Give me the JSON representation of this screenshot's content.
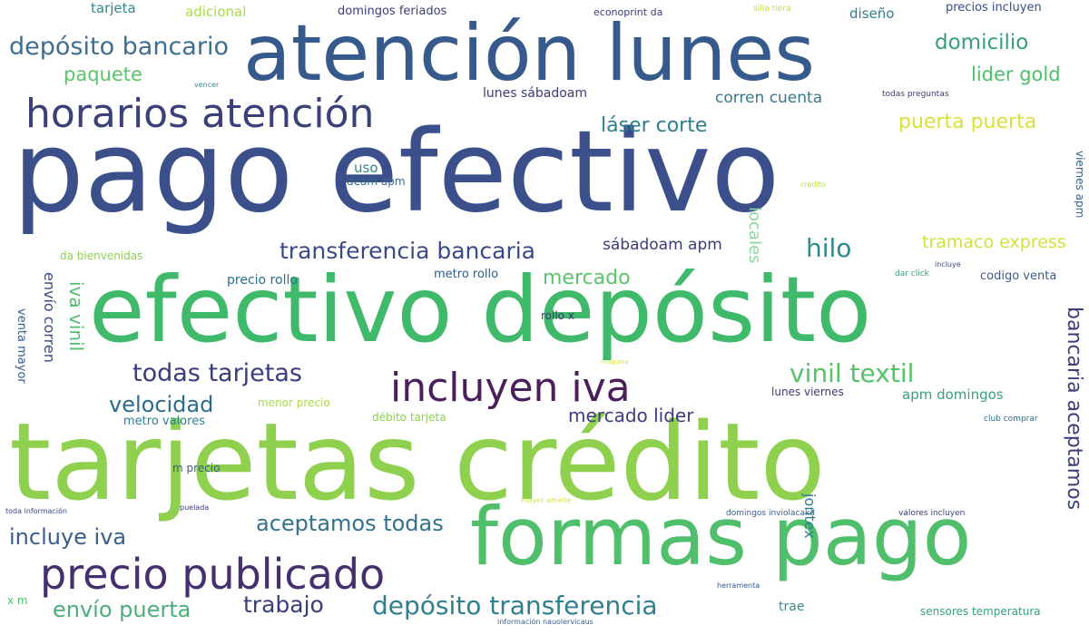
{
  "words": [
    {
      "text": "pago efectivo",
      "color": "#3b4f8a"
    },
    {
      "text": "tarjetas crédito",
      "color": "#8fd14f"
    },
    {
      "text": "efectivo depósito",
      "color": "#3fb96a"
    },
    {
      "text": "atención lunes",
      "color": "#365a8c"
    },
    {
      "text": "formas pago",
      "color": "#4fbf6b"
    },
    {
      "text": "horarios atención",
      "color": "#3b3f7a"
    },
    {
      "text": "precio publicado",
      "color": "#44306f"
    },
    {
      "text": "incluyen iva",
      "color": "#4a1f5c"
    },
    {
      "text": "depósito bancario",
      "color": "#3f6e8e"
    },
    {
      "text": "depósito transferencia",
      "color": "#2f7f8e"
    },
    {
      "text": "transferencia bancaria",
      "color": "#3a4a86"
    },
    {
      "text": "todas tarjetas",
      "color": "#3a3d7d"
    },
    {
      "text": "aceptamos todas",
      "color": "#33728c"
    },
    {
      "text": "vinil textil",
      "color": "#55c26a"
    },
    {
      "text": "hilo",
      "color": "#2f8a8c"
    },
    {
      "text": "mercado",
      "color": "#5cc46a"
    },
    {
      "text": "velocidad",
      "color": "#2a6c8e"
    },
    {
      "text": "mercado lider",
      "color": "#3d3b7d"
    },
    {
      "text": "incluye iva",
      "color": "#3a5d8c"
    },
    {
      "text": "envío puerta",
      "color": "#4cae7a"
    },
    {
      "text": "trabajo",
      "color": "#3a3d7a"
    },
    {
      "text": "domicilio",
      "color": "#35a07a"
    },
    {
      "text": "lider gold",
      "color": "#4fc06a"
    },
    {
      "text": "láser corte",
      "color": "#2e7f8e"
    },
    {
      "text": "puerta puerta",
      "color": "#d8e23a"
    },
    {
      "text": "tramaco express",
      "color": "#d0e23c"
    },
    {
      "text": "paquete",
      "color": "#5cc46a"
    },
    {
      "text": "tarjeta",
      "color": "#2e8c8c"
    },
    {
      "text": "adicional",
      "color": "#a8db4a"
    },
    {
      "text": "domingos feriados",
      "color": "#3d3b78"
    },
    {
      "text": "econoprint da",
      "color": "#3a3d7a"
    },
    {
      "text": "silla tiera",
      "color": "#c9e03a"
    },
    {
      "text": "diseño",
      "color": "#2f7f8e"
    },
    {
      "text": "precios incluyen",
      "color": "#3b4a86"
    },
    {
      "text": "lunes sábadoam",
      "color": "#3a3d7a"
    },
    {
      "text": "corren cuenta",
      "color": "#35788c"
    },
    {
      "text": "todas preguntas",
      "color": "#3a3d7a"
    },
    {
      "text": "vencer",
      "color": "#3a8c8c"
    },
    {
      "text": "uso",
      "color": "#2f8a8c"
    },
    {
      "text": "deam apm",
      "color": "#3a6c8c"
    },
    {
      "text": "crédito",
      "color": "#b8df48"
    },
    {
      "text": "sábadoam apm",
      "color": "#3a3d7a"
    },
    {
      "text": "da bienvenidas",
      "color": "#8cd14f"
    },
    {
      "text": "precio rollo",
      "color": "#2a6c8e"
    },
    {
      "text": "metro rollo",
      "color": "#2e5c8c"
    },
    {
      "text": "dar click",
      "color": "#3f9a7a"
    },
    {
      "text": "codigo venta",
      "color": "#3a5d8c"
    },
    {
      "text": "incluye",
      "color": "#3a4a86"
    },
    {
      "text": "rollo x",
      "color": "#3a3d7a"
    },
    {
      "text": "maquina",
      "color": "#d8e23a"
    },
    {
      "text": "lunes viernes",
      "color": "#3a3d7a"
    },
    {
      "text": "apm domingos",
      "color": "#35a07a"
    },
    {
      "text": "menor precio",
      "color": "#a8db4a"
    },
    {
      "text": "metro valores",
      "color": "#2f7f8e"
    },
    {
      "text": "débito tarjeta",
      "color": "#8cd14f"
    },
    {
      "text": "club comprar",
      "color": "#2a6c8e"
    },
    {
      "text": "m precio",
      "color": "#3a5d8c"
    },
    {
      "text": "puelada",
      "color": "#3a3d7a"
    },
    {
      "text": "toda información",
      "color": "#3a4a86"
    },
    {
      "text": "mayor amelle",
      "color": "#d8e23a"
    },
    {
      "text": "domingos inviolacakd",
      "color": "#3a5d8c"
    },
    {
      "text": "valores incluyen",
      "color": "#3a3d7a"
    },
    {
      "text": "x m",
      "color": "#4fc06a"
    },
    {
      "text": "herramenta",
      "color": "#2e5c8c"
    },
    {
      "text": "trae",
      "color": "#3a8c8c"
    },
    {
      "text": "sensores temperatura",
      "color": "#35a07a"
    },
    {
      "text": "información nauolervicaus",
      "color": "#3a5d8c"
    },
    {
      "text": "envío corren",
      "color": "#3a4a86"
    },
    {
      "text": "iva vinil",
      "color": "#4cbf6a"
    },
    {
      "text": "venta mayor",
      "color": "#3a5d8c"
    },
    {
      "text": "locales",
      "color": "#8cd9a0"
    },
    {
      "text": "bancaria aceptamos",
      "color": "#3b3f7a"
    },
    {
      "text": "jontex",
      "color": "#2e7f8e"
    },
    {
      "text": "viernes apm",
      "color": "#3a5d8c"
    }
  ]
}
